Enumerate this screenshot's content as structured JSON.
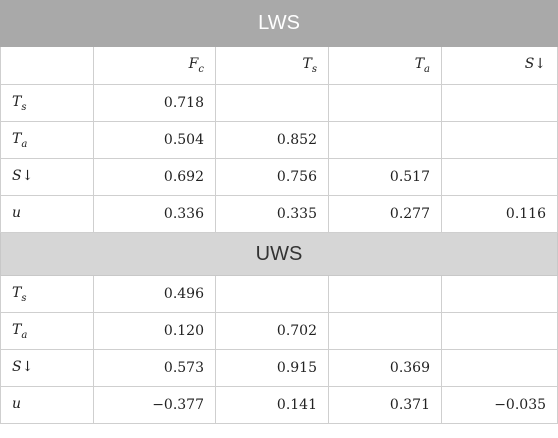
{
  "groups": [
    {
      "title": "LWS",
      "rows": [
        {
          "label": "T",
          "sub": "s",
          "values": [
            "0.718",
            "",
            "",
            ""
          ]
        },
        {
          "label": "T",
          "sub": "a",
          "values": [
            "0.504",
            "0.852",
            "",
            ""
          ]
        },
        {
          "label": "S↓",
          "sub": "",
          "values": [
            "0.692",
            "0.756",
            "0.517",
            ""
          ]
        },
        {
          "label": "u",
          "sub": "",
          "values": [
            "0.336",
            "0.335",
            "0.277",
            "0.116"
          ]
        }
      ]
    },
    {
      "title": "UWS",
      "rows": [
        {
          "label": "T",
          "sub": "s",
          "values": [
            "0.496",
            "",
            "",
            ""
          ]
        },
        {
          "label": "T",
          "sub": "a",
          "values": [
            "0.120",
            "0.702",
            "",
            ""
          ]
        },
        {
          "label": "S↓",
          "sub": "",
          "values": [
            "0.573",
            "0.915",
            "0.369",
            ""
          ]
        },
        {
          "label": "u",
          "sub": "",
          "values": [
            "−0.377",
            "0.141",
            "0.371",
            "−0.035"
          ]
        }
      ]
    }
  ],
  "columns": [
    {
      "label": "",
      "sub": ""
    },
    {
      "label": "F",
      "sub": "c"
    },
    {
      "label": "T",
      "sub": "s"
    },
    {
      "label": "T",
      "sub": "a"
    },
    {
      "label": "S↓",
      "sub": ""
    }
  ]
}
